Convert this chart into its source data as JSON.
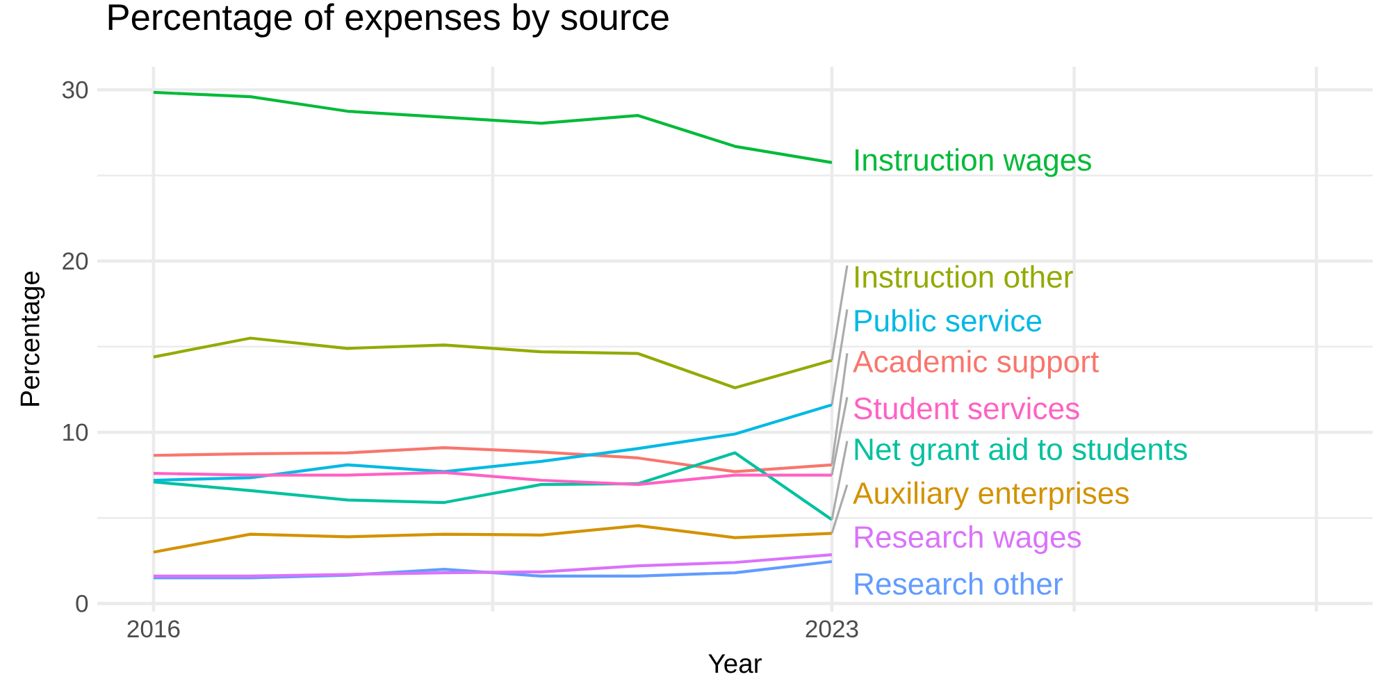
{
  "chart_data": {
    "type": "line",
    "title": "Percentage of expenses by source",
    "xlabel": "Year",
    "ylabel": "Percentage",
    "x": [
      2016,
      2017,
      2018,
      2019,
      2020,
      2021,
      2022,
      2023
    ],
    "xlim": [
      2015.42,
      2028.58
    ],
    "xticks": [
      2016,
      {
        "value": 2019.5,
        "label": null
      },
      2023,
      {
        "value": 2025.5,
        "label": null
      },
      {
        "value": 2028,
        "label": null
      }
    ],
    "ylim": [
      -0.47,
      31.35
    ],
    "yticks": [
      0,
      {
        "value": 5,
        "label": null
      },
      10,
      {
        "value": 15,
        "label": null
      },
      20,
      {
        "value": 25,
        "label": null
      },
      30
    ],
    "grid": true,
    "marker": "none",
    "line_style": "solid",
    "series": [
      {
        "name": "Academic support",
        "color": "#f8766d",
        "values": [
          8.65,
          8.75,
          8.8,
          9.1,
          8.85,
          8.5,
          7.7,
          8.1
        ]
      },
      {
        "name": "Auxiliary enterprises",
        "color": "#d39200",
        "values": [
          3.0,
          4.05,
          3.9,
          4.05,
          4.0,
          4.55,
          3.85,
          4.1
        ]
      },
      {
        "name": "Instruction other",
        "color": "#93aa00",
        "values": [
          14.4,
          15.5,
          14.9,
          15.1,
          14.7,
          14.6,
          12.6,
          14.2
        ]
      },
      {
        "name": "Instruction wages",
        "color": "#00ba38",
        "values": [
          29.85,
          29.6,
          28.75,
          28.4,
          28.05,
          28.5,
          26.7,
          25.75
        ]
      },
      {
        "name": "Net grant aid to students",
        "color": "#00c19f",
        "values": [
          7.1,
          6.6,
          6.05,
          5.9,
          6.95,
          7.0,
          8.8,
          4.9
        ]
      },
      {
        "name": "Public service",
        "color": "#00b9e3",
        "values": [
          7.2,
          7.35,
          8.1,
          7.7,
          8.3,
          9.05,
          9.9,
          11.6
        ]
      },
      {
        "name": "Research other",
        "color": "#619cff",
        "values": [
          1.5,
          1.5,
          1.65,
          2.0,
          1.6,
          1.6,
          1.8,
          2.45
        ]
      },
      {
        "name": "Research wages",
        "color": "#db72fb",
        "values": [
          1.6,
          1.6,
          1.7,
          1.8,
          1.85,
          2.2,
          2.4,
          2.85
        ]
      },
      {
        "name": "Student services",
        "color": "#ff61c3",
        "values": [
          7.6,
          7.5,
          7.5,
          7.65,
          7.2,
          6.95,
          7.5,
          7.5
        ]
      }
    ]
  }
}
